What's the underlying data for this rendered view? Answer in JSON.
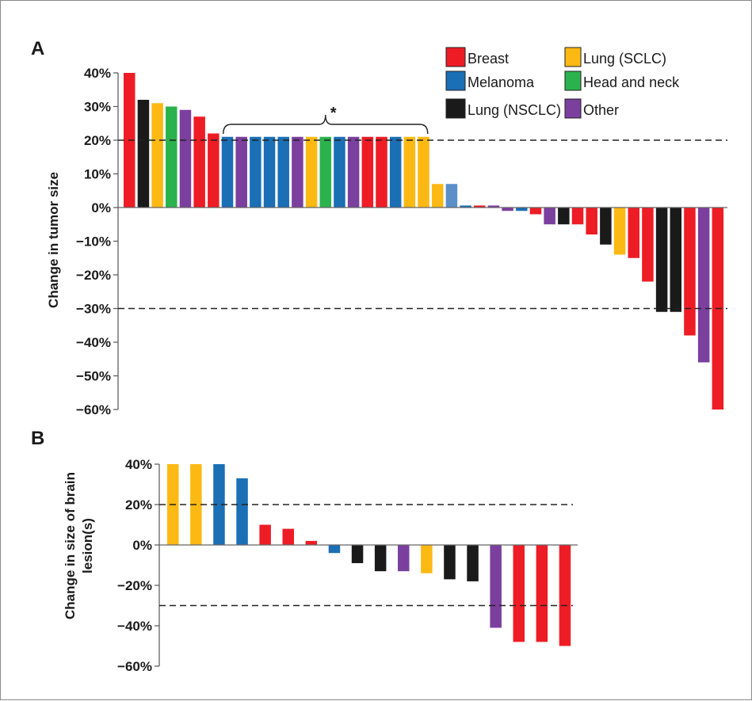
{
  "colors": {
    "Breast": "#ee1c25",
    "Melanoma": "#1a6fb5",
    "Melanoma-light": "#5b8fc9",
    "Lung (NSCLC)": "#1a1a1a",
    "Lung (SCLC)": "#fdb913",
    "Head and neck": "#2bb24c",
    "Other": "#7b3f9e"
  },
  "legend": [
    {
      "label": "Breast",
      "color_key": "Breast"
    },
    {
      "label": "Melanoma",
      "color_key": "Melanoma"
    },
    {
      "label": "Lung (NSCLC)",
      "color_key": "Lung (NSCLC)"
    },
    {
      "label": "Lung (SCLC)",
      "color_key": "Lung (SCLC)"
    },
    {
      "label": "Head and neck",
      "color_key": "Head and neck"
    },
    {
      "label": "Other",
      "color_key": "Other"
    }
  ],
  "chart_data": [
    {
      "panel": "A",
      "type": "bar",
      "ylabel": "Change in tumor size",
      "ylim": [
        -60,
        40
      ],
      "yticks": [
        40,
        30,
        20,
        10,
        0,
        -10,
        -20,
        -30,
        -40,
        -50,
        -60
      ],
      "ytick_labels": [
        "40%",
        "30%",
        "20%",
        "10%",
        "0%",
        "−10%",
        "−20%",
        "−30%",
        "−40%",
        "−50%",
        "−60%"
      ],
      "reference_lines": [
        20,
        -30
      ],
      "annotation": {
        "text": "*",
        "from_bar": 7,
        "to_bar": 21
      },
      "values": [
        40,
        32,
        31,
        30,
        29,
        27,
        22,
        21,
        21,
        21,
        21,
        21,
        21,
        21,
        21,
        21,
        21,
        21,
        21,
        21,
        21,
        21,
        7,
        7,
        0.6,
        0.6,
        0.6,
        -1,
        -1,
        -2,
        -5,
        -5,
        -5,
        -8,
        -11,
        -14,
        -15,
        -22,
        -31,
        -31,
        -38,
        -46,
        -60
      ],
      "groups": [
        "Breast",
        "Lung (NSCLC)",
        "Lung (SCLC)",
        "Head and neck",
        "Other",
        "Breast",
        "Breast",
        "Melanoma",
        "Other",
        "Melanoma",
        "Melanoma",
        "Melanoma",
        "Other",
        "Lung (SCLC)",
        "Head and neck",
        "Melanoma",
        "Other",
        "Breast",
        "Breast",
        "Melanoma",
        "Lung (SCLC)",
        "Lung (SCLC)",
        "Lung (SCLC)",
        "Melanoma-light",
        "Melanoma",
        "Breast",
        "Other",
        "Other",
        "Melanoma",
        "Breast",
        "Other",
        "Lung (NSCLC)",
        "Breast",
        "Breast",
        "Lung (NSCLC)",
        "Lung (SCLC)",
        "Breast",
        "Breast",
        "Lung (NSCLC)",
        "Lung (NSCLC)",
        "Breast",
        "Other",
        "Breast"
      ]
    },
    {
      "panel": "B",
      "type": "bar",
      "ylabel": "Change in size of brain lesion(s)",
      "ylabel_lines": [
        "Change in size of brain",
        "lesion(s)"
      ],
      "ylim": [
        -60,
        40
      ],
      "yticks": [
        40,
        20,
        0,
        -20,
        -40,
        -60
      ],
      "ytick_labels": [
        "40%",
        "20%",
        "0%",
        "−20%",
        "−40%",
        "−60%"
      ],
      "reference_lines": [
        20,
        -30
      ],
      "values": [
        40,
        40,
        40,
        33,
        10,
        8,
        2,
        -4,
        -9,
        -13,
        -13,
        -14,
        -17,
        -18,
        -41,
        -48,
        -48,
        -50
      ],
      "groups": [
        "Lung (SCLC)",
        "Lung (SCLC)",
        "Melanoma",
        "Melanoma",
        "Breast",
        "Breast",
        "Breast",
        "Melanoma",
        "Lung (NSCLC)",
        "Lung (NSCLC)",
        "Other",
        "Lung (SCLC)",
        "Lung (NSCLC)",
        "Lung (NSCLC)",
        "Other",
        "Breast",
        "Breast",
        "Breast"
      ]
    }
  ]
}
